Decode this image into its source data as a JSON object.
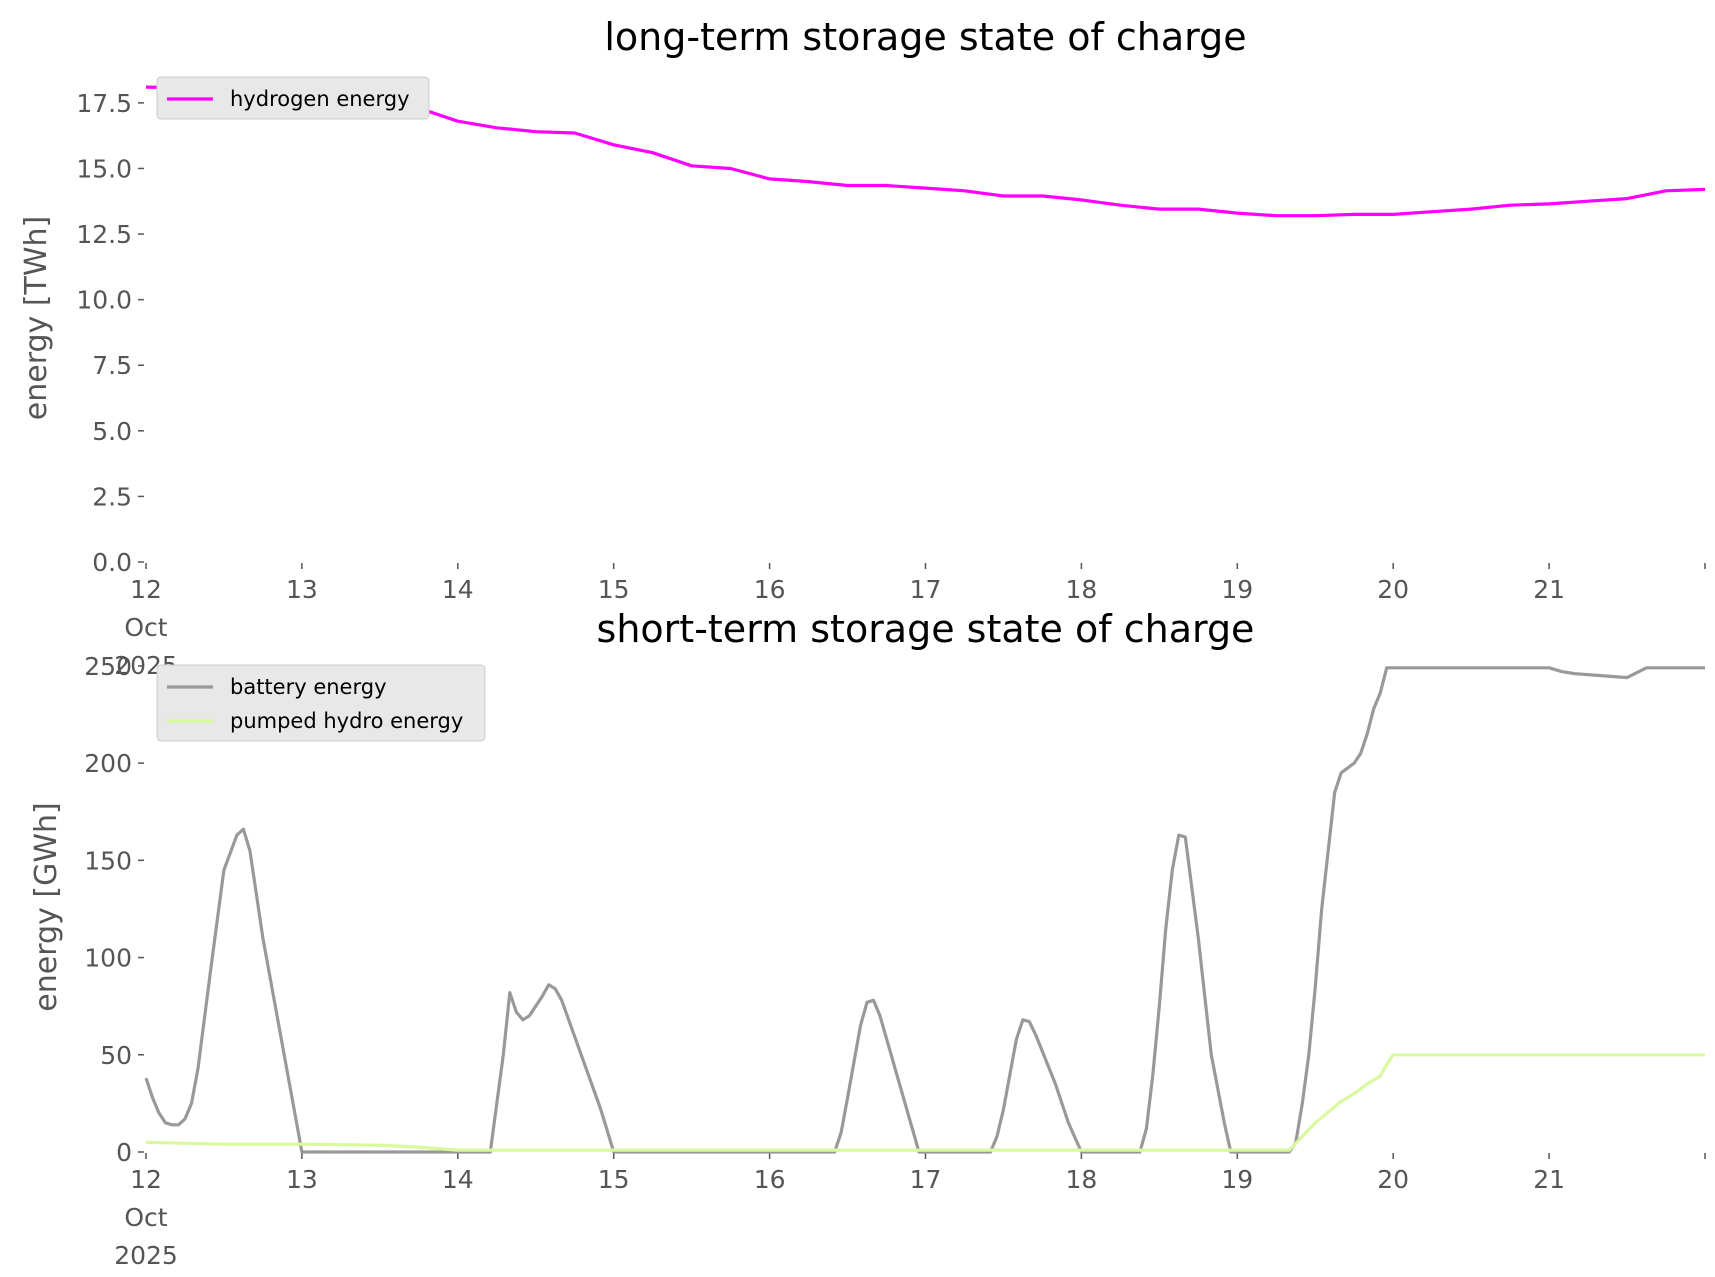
{
  "chart_data": [
    {
      "type": "line",
      "title": "long-term storage state of charge",
      "xlabel": "",
      "ylabel": "energy [TWh]",
      "x_range": [
        "2025-10-12",
        "2025-10-22"
      ],
      "ylim": [
        0,
        18.6
      ],
      "yticks": [
        "0.0",
        "2.5",
        "5.0",
        "7.5",
        "10.0",
        "12.5",
        "15.0",
        "17.5"
      ],
      "xticks": [
        {
          "x": "2025-10-12",
          "label": [
            "12",
            "Oct",
            "2025"
          ]
        },
        {
          "x": "2025-10-13",
          "label": [
            "13"
          ]
        },
        {
          "x": "2025-10-14",
          "label": [
            "14"
          ]
        },
        {
          "x": "2025-10-15",
          "label": [
            "15"
          ]
        },
        {
          "x": "2025-10-16",
          "label": [
            "16"
          ]
        },
        {
          "x": "2025-10-17",
          "label": [
            "17"
          ]
        },
        {
          "x": "2025-10-18",
          "label": [
            "18"
          ]
        },
        {
          "x": "2025-10-19",
          "label": [
            "19"
          ]
        },
        {
          "x": "2025-10-20",
          "label": [
            "20"
          ]
        },
        {
          "x": "2025-10-21",
          "label": [
            "21"
          ]
        },
        {
          "x": "2025-10-22",
          "label": [
            ""
          ]
        }
      ],
      "grid": false,
      "legend": "top-left",
      "series": [
        {
          "name": "hydrogen energy",
          "color": "#ff00ff",
          "points": [
            [
              "2025-10-12 00:00",
              18.1
            ],
            [
              "2025-10-12 12:00",
              18.05
            ],
            [
              "2025-10-13 00:00",
              18.0
            ],
            [
              "2025-10-13 06:00",
              17.7
            ],
            [
              "2025-10-13 12:00",
              17.4
            ],
            [
              "2025-10-13 18:00",
              17.3
            ],
            [
              "2025-10-14 00:00",
              16.8
            ],
            [
              "2025-10-14 06:00",
              16.55
            ],
            [
              "2025-10-14 12:00",
              16.4
            ],
            [
              "2025-10-14 18:00",
              16.35
            ],
            [
              "2025-10-15 00:00",
              15.9
            ],
            [
              "2025-10-15 06:00",
              15.6
            ],
            [
              "2025-10-15 12:00",
              15.1
            ],
            [
              "2025-10-15 18:00",
              15.0
            ],
            [
              "2025-10-16 00:00",
              14.6
            ],
            [
              "2025-10-16 06:00",
              14.5
            ],
            [
              "2025-10-16 12:00",
              14.35
            ],
            [
              "2025-10-16 18:00",
              14.35
            ],
            [
              "2025-10-17 00:00",
              14.25
            ],
            [
              "2025-10-17 06:00",
              14.15
            ],
            [
              "2025-10-17 12:00",
              13.95
            ],
            [
              "2025-10-17 18:00",
              13.95
            ],
            [
              "2025-10-18 00:00",
              13.8
            ],
            [
              "2025-10-18 06:00",
              13.6
            ],
            [
              "2025-10-18 12:00",
              13.45
            ],
            [
              "2025-10-18 18:00",
              13.45
            ],
            [
              "2025-10-19 00:00",
              13.3
            ],
            [
              "2025-10-19 06:00",
              13.2
            ],
            [
              "2025-10-19 12:00",
              13.2
            ],
            [
              "2025-10-19 18:00",
              13.25
            ],
            [
              "2025-10-20 00:00",
              13.25
            ],
            [
              "2025-10-20 06:00",
              13.35
            ],
            [
              "2025-10-20 12:00",
              13.45
            ],
            [
              "2025-10-20 18:00",
              13.6
            ],
            [
              "2025-10-21 00:00",
              13.65
            ],
            [
              "2025-10-21 06:00",
              13.75
            ],
            [
              "2025-10-21 12:00",
              13.85
            ],
            [
              "2025-10-21 18:00",
              14.15
            ],
            [
              "2025-10-22 00:00",
              14.2
            ]
          ]
        }
      ]
    },
    {
      "type": "line",
      "title": "short-term storage state of charge",
      "xlabel": "",
      "ylabel": "energy [GWh]",
      "x_range": [
        "2025-10-12",
        "2025-10-22"
      ],
      "ylim": [
        0,
        252
      ],
      "yticks": [
        "0",
        "50",
        "100",
        "150",
        "200",
        "250"
      ],
      "xticks": [
        {
          "x": "2025-10-12",
          "label": [
            "12",
            "Oct",
            "2025"
          ]
        },
        {
          "x": "2025-10-13",
          "label": [
            "13"
          ]
        },
        {
          "x": "2025-10-14",
          "label": [
            "14"
          ]
        },
        {
          "x": "2025-10-15",
          "label": [
            "15"
          ]
        },
        {
          "x": "2025-10-16",
          "label": [
            "16"
          ]
        },
        {
          "x": "2025-10-17",
          "label": [
            "17"
          ]
        },
        {
          "x": "2025-10-18",
          "label": [
            "18"
          ]
        },
        {
          "x": "2025-10-19",
          "label": [
            "19"
          ]
        },
        {
          "x": "2025-10-20",
          "label": [
            "20"
          ]
        },
        {
          "x": "2025-10-21",
          "label": [
            "21"
          ]
        },
        {
          "x": "2025-10-22",
          "label": [
            ""
          ]
        }
      ],
      "grid": false,
      "legend": "top-left",
      "series": [
        {
          "name": "battery energy",
          "color": "#999999",
          "points": [
            [
              "2025-10-12 00:00",
              38
            ],
            [
              "2025-10-12 01:00",
              28
            ],
            [
              "2025-10-12 02:00",
              20
            ],
            [
              "2025-10-12 03:00",
              15
            ],
            [
              "2025-10-12 04:00",
              14
            ],
            [
              "2025-10-12 05:00",
              14
            ],
            [
              "2025-10-12 06:00",
              17
            ],
            [
              "2025-10-12 07:00",
              25
            ],
            [
              "2025-10-12 08:00",
              43
            ],
            [
              "2025-10-12 10:00",
              95
            ],
            [
              "2025-10-12 12:00",
              145
            ],
            [
              "2025-10-12 14:00",
              163
            ],
            [
              "2025-10-12 15:00",
              166
            ],
            [
              "2025-10-12 16:00",
              155
            ],
            [
              "2025-10-12 18:00",
              110
            ],
            [
              "2025-10-12 21:00",
              55
            ],
            [
              "2025-10-13 00:00",
              0
            ],
            [
              "2025-10-14 05:00",
              0
            ],
            [
              "2025-10-14 07:00",
              50
            ],
            [
              "2025-10-14 08:00",
              82
            ],
            [
              "2025-10-14 09:00",
              72
            ],
            [
              "2025-10-14 10:00",
              68
            ],
            [
              "2025-10-14 11:00",
              70
            ],
            [
              "2025-10-14 13:00",
              80
            ],
            [
              "2025-10-14 14:00",
              86
            ],
            [
              "2025-10-14 15:00",
              84
            ],
            [
              "2025-10-14 16:00",
              78
            ],
            [
              "2025-10-14 19:00",
              50
            ],
            [
              "2025-10-14 22:00",
              22
            ],
            [
              "2025-10-15 00:00",
              0
            ],
            [
              "2025-10-16 10:00",
              0
            ],
            [
              "2025-10-16 11:00",
              10
            ],
            [
              "2025-10-16 12:00",
              28
            ],
            [
              "2025-10-16 14:00",
              65
            ],
            [
              "2025-10-16 15:00",
              77
            ],
            [
              "2025-10-16 16:00",
              78
            ],
            [
              "2025-10-16 17:00",
              70
            ],
            [
              "2025-10-16 20:00",
              35
            ],
            [
              "2025-10-16 23:00",
              0
            ],
            [
              "2025-10-17 10:00",
              0
            ],
            [
              "2025-10-17 11:00",
              8
            ],
            [
              "2025-10-17 12:00",
              22
            ],
            [
              "2025-10-17 14:00",
              58
            ],
            [
              "2025-10-17 15:00",
              68
            ],
            [
              "2025-10-17 16:00",
              67
            ],
            [
              "2025-10-17 17:00",
              60
            ],
            [
              "2025-10-17 20:00",
              35
            ],
            [
              "2025-10-17 22:00",
              15
            ],
            [
              "2025-10-18 00:00",
              0
            ],
            [
              "2025-10-18 09:00",
              0
            ],
            [
              "2025-10-18 10:00",
              12
            ],
            [
              "2025-10-18 11:00",
              40
            ],
            [
              "2025-10-18 12:00",
              75
            ],
            [
              "2025-10-18 13:00",
              115
            ],
            [
              "2025-10-18 14:00",
              145
            ],
            [
              "2025-10-18 15:00",
              163
            ],
            [
              "2025-10-18 16:00",
              162
            ],
            [
              "2025-10-18 18:00",
              110
            ],
            [
              "2025-10-18 20:00",
              50
            ],
            [
              "2025-10-18 22:00",
              15
            ],
            [
              "2025-10-18 23:00",
              0
            ],
            [
              "2025-10-19 08:00",
              0
            ],
            [
              "2025-10-19 09:00",
              5
            ],
            [
              "2025-10-19 10:00",
              25
            ],
            [
              "2025-10-19 11:00",
              50
            ],
            [
              "2025-10-19 12:00",
              85
            ],
            [
              "2025-10-19 13:00",
              125
            ],
            [
              "2025-10-19 14:00",
              155
            ],
            [
              "2025-10-19 15:00",
              185
            ],
            [
              "2025-10-19 16:00",
              195
            ],
            [
              "2025-10-19 18:00",
              200
            ],
            [
              "2025-10-19 19:00",
              205
            ],
            [
              "2025-10-19 20:00",
              215
            ],
            [
              "2025-10-19 21:00",
              228
            ],
            [
              "2025-10-19 22:00",
              236
            ],
            [
              "2025-10-19 23:00",
              249
            ],
            [
              "2025-10-21 00:00",
              249
            ],
            [
              "2025-10-21 02:00",
              247
            ],
            [
              "2025-10-21 04:00",
              246
            ],
            [
              "2025-10-21 08:00",
              245
            ],
            [
              "2025-10-21 12:00",
              244
            ],
            [
              "2025-10-21 15:00",
              249
            ],
            [
              "2025-10-22 00:00",
              249
            ]
          ]
        },
        {
          "name": "pumped hydro energy",
          "color": "#d9f99d",
          "points": [
            [
              "2025-10-12 00:00",
              5
            ],
            [
              "2025-10-12 12:00",
              4
            ],
            [
              "2025-10-13 00:00",
              4
            ],
            [
              "2025-10-13 12:00",
              3.5
            ],
            [
              "2025-10-13 18:00",
              2.5
            ],
            [
              "2025-10-14 00:00",
              1
            ],
            [
              "2025-10-19 08:00",
              1
            ],
            [
              "2025-10-19 10:00",
              8
            ],
            [
              "2025-10-19 12:00",
              15
            ],
            [
              "2025-10-19 16:00",
              26
            ],
            [
              "2025-10-19 18:00",
              30
            ],
            [
              "2025-10-19 20:00",
              35
            ],
            [
              "2025-10-19 22:00",
              39
            ],
            [
              "2025-10-19 23:00",
              45
            ],
            [
              "2025-10-20 00:00",
              50
            ],
            [
              "2025-10-22 00:00",
              50
            ]
          ]
        }
      ]
    }
  ]
}
